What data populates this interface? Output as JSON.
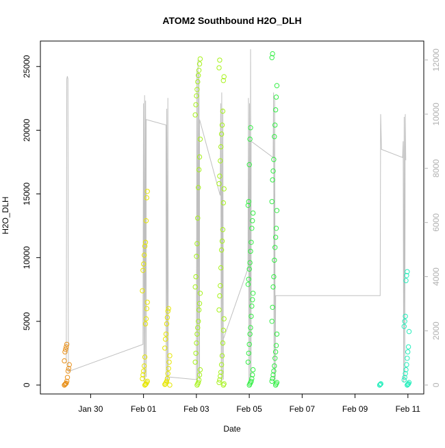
{
  "chart_data": {
    "type": "scatter",
    "title": "ATOM2 Southbound H2O_DLH",
    "xlabel": "Date",
    "ylabel": "H2O_DLH",
    "x_ticks": [
      "Jan 30",
      "Feb 01",
      "Feb 03",
      "Feb 05",
      "Feb 07",
      "Feb 09",
      "Feb 11"
    ],
    "x_tick_days": [
      30,
      32,
      34,
      36,
      38,
      40,
      42
    ],
    "xlim": [
      28.1,
      42.6
    ],
    "ylim": [
      -700,
      27000
    ],
    "y_ticks": [
      0,
      5000,
      10000,
      15000,
      20000,
      25000
    ],
    "y2_label": "",
    "y2_ticks": [
      0,
      2000,
      4000,
      6000,
      8000,
      10000,
      12000
    ],
    "y2lim": [
      -330,
      12700
    ],
    "grid": false,
    "colors": {
      "marker_orange": "#e8901a",
      "marker_yellow": "#e6e600",
      "marker_lime": "#a6f21a",
      "marker_green": "#33ee44",
      "marker_mint": "#22eebb",
      "secondary_line": "#bfbfbf",
      "axis": "#000000",
      "right_axis": "#b0b0b0"
    },
    "scatter_clusters": [
      {
        "color": "marker_orange",
        "x": 29.1,
        "values": [
          0,
          50,
          100,
          150,
          300,
          600,
          1100,
          1300,
          1600,
          1900,
          2600,
          2800,
          3000,
          3200
        ]
      },
      {
        "color": "marker_yellow",
        "x": 32.05,
        "values": [
          0,
          50,
          100,
          200,
          300,
          500,
          800,
          1100,
          1500,
          2200,
          4800,
          5200,
          6000,
          6500,
          7400,
          9000,
          9500,
          10200,
          10900,
          11200,
          12900,
          14700,
          15200
        ]
      },
      {
        "color": "marker_yellow",
        "x": 32.9,
        "values": [
          0,
          50,
          100,
          200,
          300,
          500,
          900,
          1300,
          1800,
          2300,
          2900,
          3600,
          4000,
          4800,
          5300,
          5800,
          6000
        ]
      },
      {
        "color": "marker_lime",
        "x": 34.05,
        "values": [
          0,
          100,
          200,
          400,
          800,
          1200,
          1800,
          2500,
          3300,
          4000,
          4500,
          5000,
          5900,
          6400,
          7200,
          7700,
          8500,
          10100,
          11100,
          13100,
          15500,
          16900,
          17900,
          19300,
          21200,
          22000,
          22700,
          23200,
          23800,
          24300,
          24700,
          25200,
          25600
        ]
      },
      {
        "color": "marker_lime",
        "x": 34.95,
        "values": [
          0,
          100,
          200,
          400,
          700,
          1000,
          1600,
          2300,
          3300,
          4300,
          5200,
          5900,
          7000,
          7800,
          9200,
          10600,
          11300,
          12200,
          14300,
          15400,
          15800,
          16400,
          17600,
          18700,
          19700,
          20400,
          21500,
          23900,
          24200,
          24900,
          25500
        ]
      },
      {
        "color": "marker_green",
        "x": 36.05,
        "values": [
          0,
          100,
          200,
          300,
          500,
          800,
          1200,
          1800,
          2500,
          3200,
          4000,
          4500,
          5400,
          6200,
          6700,
          7200,
          7900,
          8300,
          9100,
          9600,
          10500,
          11200,
          12300,
          12900,
          13500,
          14100,
          14400,
          17300,
          19300,
          20200
        ]
      },
      {
        "color": "marker_green",
        "x": 36.95,
        "values": [
          0,
          100,
          200,
          300,
          500,
          800,
          1100,
          1500,
          2100,
          2600,
          3100,
          4000,
          5000,
          6100,
          7700,
          8500,
          9800,
          10800,
          11600,
          12300,
          13700,
          14400,
          16100,
          16800,
          17700,
          19500,
          20400,
          21600,
          22600,
          23500,
          25700,
          26000
        ]
      },
      {
        "color": "marker_mint",
        "x": 41.0,
        "values": [
          0,
          50,
          100
        ]
      },
      {
        "color": "marker_mint",
        "x": 41.95,
        "values": [
          0,
          50,
          100,
          200,
          400,
          600,
          900,
          1200,
          1600,
          2100,
          2600,
          3000,
          4200,
          4600,
          5000,
          5400,
          8200,
          8600,
          8900
        ]
      }
    ],
    "secondary_line": [
      [
        29.08,
        800
      ],
      [
        29.1,
        11300
      ],
      [
        29.12,
        11400
      ],
      [
        29.14,
        11300
      ],
      [
        29.16,
        500
      ],
      [
        31.98,
        1500
      ],
      [
        32.0,
        10400
      ],
      [
        32.02,
        100
      ],
      [
        32.04,
        10700
      ],
      [
        32.06,
        200
      ],
      [
        32.08,
        10500
      ],
      [
        32.1,
        300
      ],
      [
        32.1,
        9800
      ],
      [
        32.85,
        9600
      ],
      [
        32.86,
        200
      ],
      [
        32.88,
        10200
      ],
      [
        32.9,
        100
      ],
      [
        32.92,
        10600
      ],
      [
        32.94,
        200
      ],
      [
        32.94,
        300
      ],
      [
        34.0,
        200
      ],
      [
        34.02,
        11600
      ],
      [
        34.04,
        100
      ],
      [
        34.06,
        12000
      ],
      [
        34.08,
        300
      ],
      [
        34.1,
        11500
      ],
      [
        34.12,
        200
      ],
      [
        34.12,
        9800
      ],
      [
        34.9,
        7000
      ],
      [
        34.92,
        10400
      ],
      [
        34.94,
        100
      ],
      [
        34.96,
        10800
      ],
      [
        34.98,
        200
      ],
      [
        35.0,
        10200
      ],
      [
        35.02,
        200
      ],
      [
        35.02,
        1700
      ],
      [
        35.95,
        4300
      ],
      [
        35.97,
        10600
      ],
      [
        35.99,
        100
      ],
      [
        36.01,
        10400
      ],
      [
        36.03,
        200
      ],
      [
        36.05,
        12400
      ],
      [
        36.07,
        300
      ],
      [
        36.07,
        9000
      ],
      [
        36.9,
        8400
      ],
      [
        36.92,
        10800
      ],
      [
        36.94,
        100
      ],
      [
        36.96,
        10600
      ],
      [
        36.98,
        200
      ],
      [
        37.0,
        3300
      ],
      [
        37.0,
        3300
      ],
      [
        40.95,
        3300
      ],
      [
        40.97,
        10000
      ],
      [
        41.0,
        8700
      ],
      [
        41.8,
        8400
      ],
      [
        41.82,
        9000
      ],
      [
        41.84,
        100
      ],
      [
        41.86,
        9900
      ],
      [
        41.88,
        200
      ],
      [
        41.9,
        10000
      ],
      [
        41.92,
        8300
      ]
    ]
  }
}
